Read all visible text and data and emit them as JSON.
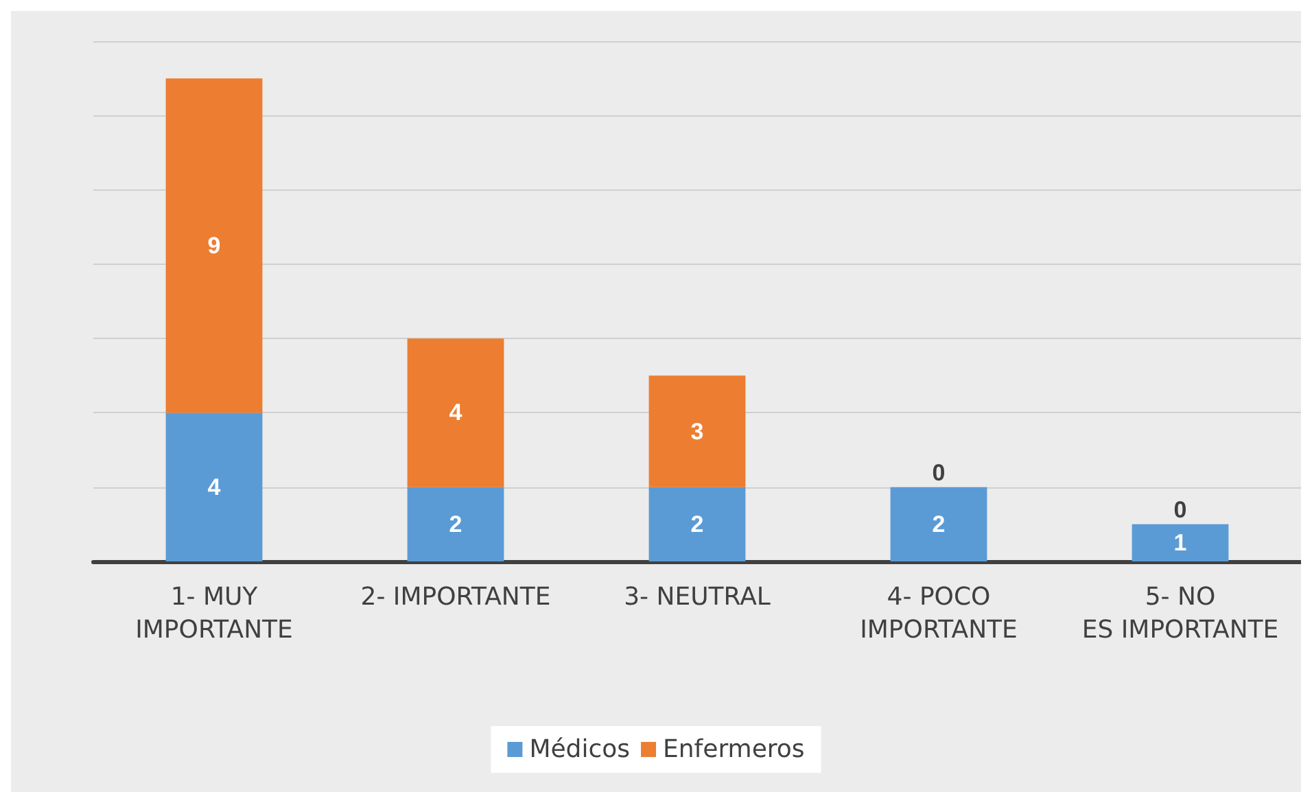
{
  "chart_data": {
    "type": "bar",
    "stacked": true,
    "categories": [
      "1- MUY IMPORTANTE",
      "2- IMPORTANTE",
      "3- NEUTRAL",
      "4- POCO IMPORTANTE",
      "5- NO ES IMPORTANTE"
    ],
    "series": [
      {
        "name": "Médicos",
        "color": "#5b9bd5",
        "values": [
          4,
          2,
          2,
          2,
          1
        ]
      },
      {
        "name": "Enfermeros",
        "color": "#ed7d31",
        "values": [
          9,
          4,
          3,
          0,
          0
        ]
      }
    ],
    "ylim": [
      0,
      14
    ],
    "yticks": [
      {
        "value": 0,
        "label": null
      },
      {
        "value": 2,
        "label": null
      },
      {
        "value": 4,
        "label": null
      },
      {
        "value": 6,
        "label": null
      },
      {
        "value": 8,
        "label": null
      },
      {
        "value": 10,
        "label": null
      },
      {
        "value": 12,
        "label": null
      },
      {
        "value": 14,
        "label": null
      }
    ],
    "tick_labels": "x",
    "grid": "y",
    "legend": "bottom",
    "data_labels": true
  }
}
